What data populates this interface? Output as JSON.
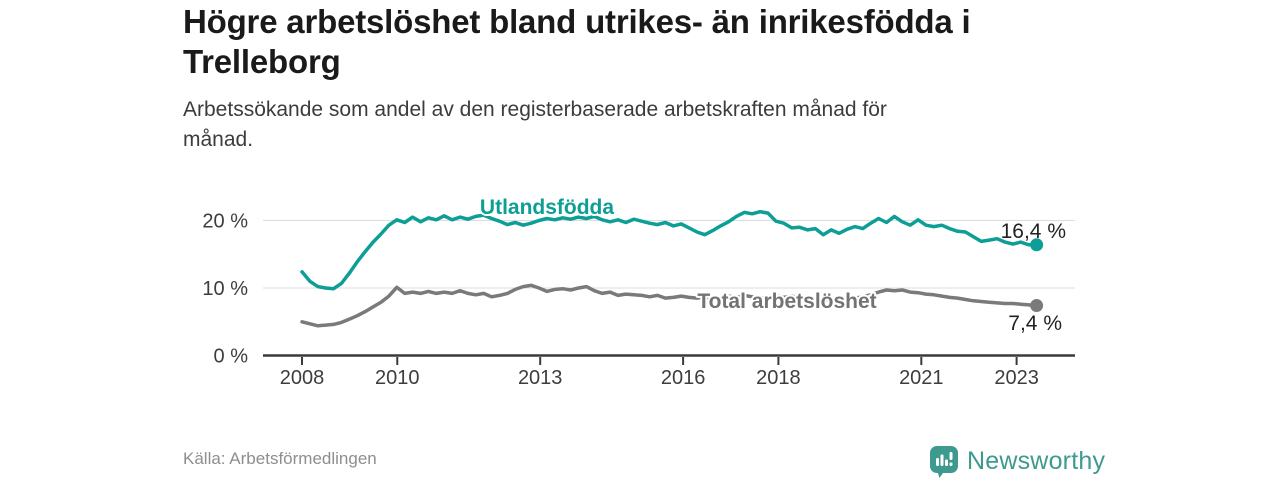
{
  "header": {
    "title_lines": [
      "Högre arbetslöshet bland utrikes- än inrikesfödda i",
      "Trelleborg"
    ],
    "subtitle_lines": [
      "Arbetssökande som andel av den registerbaserade arbetskraften månad för",
      "månad."
    ]
  },
  "footer": {
    "source": "Källa: Arbetsförmedlingen",
    "logo_text": "Newsworthy",
    "logo_color": "#3e9a8e"
  },
  "colors": {
    "accent_teal": "#0d9e96",
    "series_gray": "#7a7a7a",
    "axis": "#3a3a3a",
    "gridline": "#dcdcdc",
    "tick_text": "#3d3d3d",
    "value_text": "#222222"
  },
  "chart_data": {
    "type": "line",
    "title": "Högre arbetslöshet bland utrikes- än inrikesfödda i Trelleborg",
    "subtitle": "Arbetssökande som andel av den registerbaserade arbetskraften månad för månad.",
    "xlabel": "",
    "ylabel": "",
    "grid": "horizontal",
    "legend_position": "inline-labels",
    "x_range": [
      2008.0,
      2023.42
    ],
    "ylim": [
      0,
      23
    ],
    "x_ticks": [
      {
        "label": "2008",
        "value": 2008
      },
      {
        "label": "2010",
        "value": 2010
      },
      {
        "label": "2013",
        "value": 2013
      },
      {
        "label": "2016",
        "value": 2016
      },
      {
        "label": "2018",
        "value": 2018
      },
      {
        "label": "2021",
        "value": 2021
      },
      {
        "label": "2023",
        "value": 2023
      }
    ],
    "y_ticks": [
      {
        "label": "0 %",
        "value": 0
      },
      {
        "label": "10 %",
        "value": 10
      },
      {
        "label": "20 %",
        "value": 20
      }
    ],
    "series": [
      {
        "name": "Utlandsfödda",
        "color": "#0d9e96",
        "end_label": "16,4 %",
        "end_value": 16.4,
        "values": [
          12.4,
          11.0,
          10.2,
          10.0,
          9.9,
          10.7,
          12.2,
          13.9,
          15.4,
          16.8,
          18.0,
          19.3,
          20.1,
          19.7,
          20.5,
          19.8,
          20.4,
          20.1,
          20.7,
          20.1,
          20.5,
          20.2,
          20.6,
          20.8,
          20.3,
          19.9,
          19.4,
          19.7,
          19.3,
          19.6,
          20.0,
          20.3,
          20.1,
          20.4,
          20.2,
          20.5,
          20.3,
          20.6,
          20.1,
          19.8,
          20.1,
          19.7,
          20.2,
          19.9,
          19.6,
          19.4,
          19.7,
          19.2,
          19.5,
          18.9,
          18.3,
          17.9,
          18.5,
          19.2,
          19.8,
          20.6,
          21.2,
          21.0,
          21.3,
          21.1,
          19.9,
          19.6,
          18.9,
          19.0,
          18.6,
          18.8,
          17.9,
          18.6,
          18.1,
          18.7,
          19.1,
          18.8,
          19.6,
          20.3,
          19.7,
          20.6,
          19.8,
          19.3,
          20.1,
          19.3,
          19.1,
          19.3,
          18.8,
          18.4,
          18.3,
          17.6,
          16.9,
          17.1,
          17.3,
          16.8,
          16.5,
          16.8,
          16.4,
          16.4
        ]
      },
      {
        "name": "Total arbetslöshet",
        "color": "#7a7a7a",
        "end_label": "7,4 %",
        "end_value": 7.4,
        "values": [
          5.0,
          4.7,
          4.4,
          4.5,
          4.6,
          4.9,
          5.4,
          5.9,
          6.5,
          7.2,
          7.9,
          8.8,
          10.1,
          9.2,
          9.4,
          9.2,
          9.5,
          9.2,
          9.4,
          9.2,
          9.6,
          9.2,
          9.0,
          9.2,
          8.7,
          8.9,
          9.2,
          9.8,
          10.2,
          10.4,
          10.0,
          9.5,
          9.8,
          9.9,
          9.7,
          10.0,
          10.2,
          9.6,
          9.2,
          9.4,
          8.9,
          9.1,
          9.0,
          8.9,
          8.7,
          8.9,
          8.5,
          8.6,
          8.8,
          8.6,
          8.5,
          8.7,
          8.4,
          8.6,
          8.8,
          8.6,
          8.9,
          8.7,
          8.5,
          8.7,
          8.9,
          8.6,
          8.8,
          8.5,
          8.3,
          8.5,
          8.4,
          8.2,
          8.4,
          8.3,
          8.5,
          8.7,
          9.0,
          9.4,
          9.7,
          9.6,
          9.7,
          9.4,
          9.3,
          9.1,
          9.0,
          8.8,
          8.6,
          8.5,
          8.3,
          8.1,
          8.0,
          7.9,
          7.8,
          7.7,
          7.7,
          7.6,
          7.5,
          7.4
        ]
      }
    ]
  }
}
